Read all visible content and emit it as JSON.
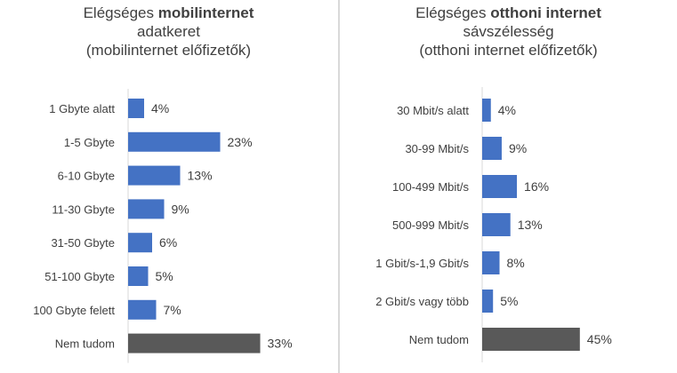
{
  "chart_data": [
    {
      "type": "bar",
      "orientation": "horizontal",
      "title_prefix": "Elégséges ",
      "title_bold": "mobilinternet",
      "title_line2": "adatkeret",
      "title_line3": "(mobilinternet  előfizetők)",
      "categories": [
        "1 Gbyte alatt",
        "1-5 Gbyte",
        "6-10 Gbyte",
        "11-30 Gbyte",
        "31-50 Gbyte",
        "51-100 Gbyte",
        "100 Gbyte felett",
        "Nem tudom"
      ],
      "values": [
        4,
        23,
        13,
        9,
        6,
        5,
        7,
        33
      ],
      "labels": [
        "4%",
        "23%",
        "13%",
        "9%",
        "6%",
        "5%",
        "7%",
        "33%"
      ],
      "highlight_index": 7,
      "xlim": [
        0,
        70
      ]
    },
    {
      "type": "bar",
      "orientation": "horizontal",
      "title_prefix": "Elégséges ",
      "title_bold": "otthoni internet",
      "title_line2": "sávszélesség",
      "title_line3": "(otthoni  internet  előfizetők)",
      "categories": [
        "30 Mbit/s alatt",
        "30-99 Mbit/s",
        "100-499 Mbit/s",
        "500-999 Mbit/s",
        "1 Gbit/s-1,9 Gbit/s",
        "2 Gbit/s vagy több",
        "Nem tudom"
      ],
      "values": [
        4,
        9,
        16,
        13,
        8,
        5,
        45
      ],
      "labels": [
        "4%",
        "9%",
        "16%",
        "13%",
        "8%",
        "5%",
        "45%"
      ],
      "highlight_index": 6,
      "xlim": [
        0,
        100
      ]
    }
  ],
  "colors": {
    "bar": "#4472c4",
    "bar_highlight": "#595959",
    "text": "#404040",
    "divider": "#d9d9d9"
  }
}
